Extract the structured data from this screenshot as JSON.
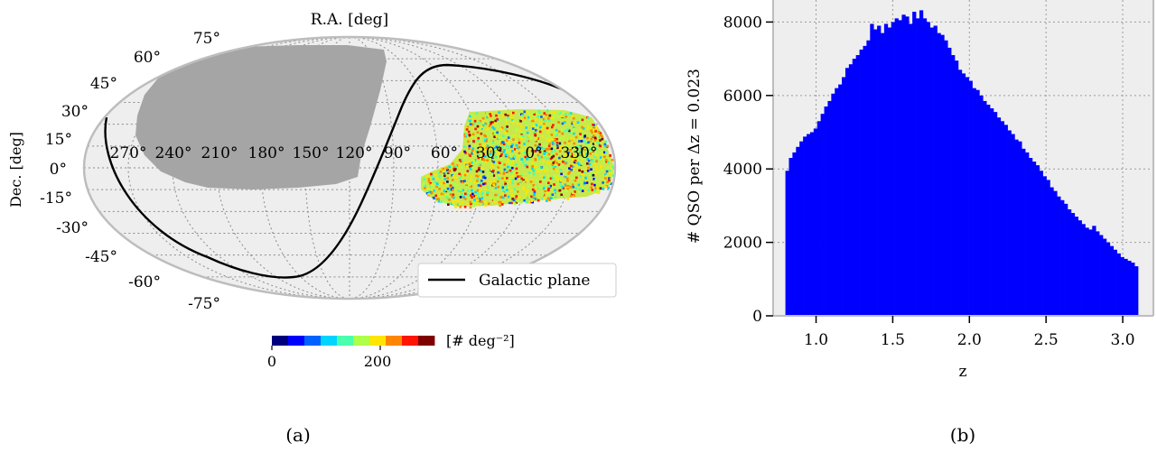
{
  "chart_data": [
    {
      "panel_label": "(a)",
      "type": "sky-map",
      "projection": "mollweide",
      "title": "R.A. [deg]",
      "ylabel": "Dec. [deg]",
      "ra_tick_labels": [
        "270°",
        "240°",
        "210°",
        "180°",
        "150°",
        "120°",
        "90°",
        "60°",
        "30°",
        "0°",
        "330°"
      ],
      "dec_tick_labels": [
        "75°",
        "60°",
        "45°",
        "30°",
        "15°",
        "0°",
        "-15°",
        "-30°",
        "-45°",
        "-60°",
        "-75°"
      ],
      "legend": {
        "entries": [
          "Galactic plane"
        ],
        "placement": "lower-right"
      },
      "colorbar": {
        "label": "[# deg⁻²]",
        "ticks": [
          "0",
          "200"
        ],
        "range": [
          0,
          300
        ],
        "colormap": "jet"
      },
      "footprint_color": "#a5a5a5",
      "background_color": "#eeeeee",
      "grid": true
    },
    {
      "panel_label": "(b)",
      "type": "bar",
      "xlabel": "z",
      "ylabel": "# QSO per Δz = 0.023",
      "xlim": [
        0.72,
        3.2
      ],
      "ylim": [
        0,
        8600
      ],
      "xticks": [
        1.0,
        1.5,
        2.0,
        2.5,
        3.0
      ],
      "yticks": [
        0,
        2000,
        4000,
        6000,
        8000
      ],
      "bin_width": 0.023,
      "bar_color": "#0000ff",
      "background_color": "#eeeeee",
      "grid": true,
      "bin_start": [
        0.8,
        0.823,
        0.846,
        0.869,
        0.892,
        0.915,
        0.938,
        0.961,
        0.984,
        1.007,
        1.03,
        1.053,
        1.076,
        1.099,
        1.122,
        1.145,
        1.168,
        1.191,
        1.214,
        1.237,
        1.26,
        1.283,
        1.306,
        1.329,
        1.352,
        1.375,
        1.398,
        1.421,
        1.444,
        1.467,
        1.49,
        1.513,
        1.536,
        1.559,
        1.582,
        1.605,
        1.628,
        1.651,
        1.674,
        1.697,
        1.72,
        1.743,
        1.766,
        1.789,
        1.812,
        1.835,
        1.858,
        1.881,
        1.904,
        1.927,
        1.95,
        1.973,
        1.996,
        2.019,
        2.042,
        2.065,
        2.088,
        2.111,
        2.134,
        2.157,
        2.18,
        2.203,
        2.226,
        2.249,
        2.272,
        2.295,
        2.318,
        2.341,
        2.364,
        2.387,
        2.41,
        2.433,
        2.456,
        2.479,
        2.502,
        2.525,
        2.548,
        2.571,
        2.594,
        2.617,
        2.64,
        2.663,
        2.686,
        2.709,
        2.732,
        2.755,
        2.778,
        2.801,
        2.824,
        2.847,
        2.87,
        2.893,
        2.916,
        2.939,
        2.962,
        2.985,
        3.008,
        3.031,
        3.054,
        3.077
      ],
      "counts": [
        3950,
        4300,
        4450,
        4600,
        4750,
        4880,
        4950,
        5000,
        5100,
        5300,
        5500,
        5700,
        5850,
        6050,
        6200,
        6300,
        6500,
        6750,
        6850,
        7000,
        7100,
        7250,
        7350,
        7500,
        7950,
        7800,
        7900,
        7700,
        7950,
        7850,
        8000,
        8100,
        8050,
        8200,
        8150,
        7950,
        8280,
        8100,
        8320,
        8100,
        8000,
        7850,
        7900,
        7700,
        7650,
        7500,
        7300,
        7100,
        6950,
        6700,
        6600,
        6500,
        6400,
        6200,
        6150,
        6000,
        5850,
        5750,
        5650,
        5550,
        5400,
        5300,
        5200,
        5050,
        4950,
        4800,
        4750,
        4550,
        4450,
        4300,
        4200,
        4100,
        3950,
        3800,
        3700,
        3500,
        3400,
        3250,
        3150,
        3050,
        2900,
        2800,
        2700,
        2600,
        2500,
        2400,
        2350,
        2450,
        2300,
        2200,
        2100,
        2000,
        1900,
        1800,
        1700,
        1600,
        1550,
        1500,
        1450,
        1350
      ]
    }
  ]
}
